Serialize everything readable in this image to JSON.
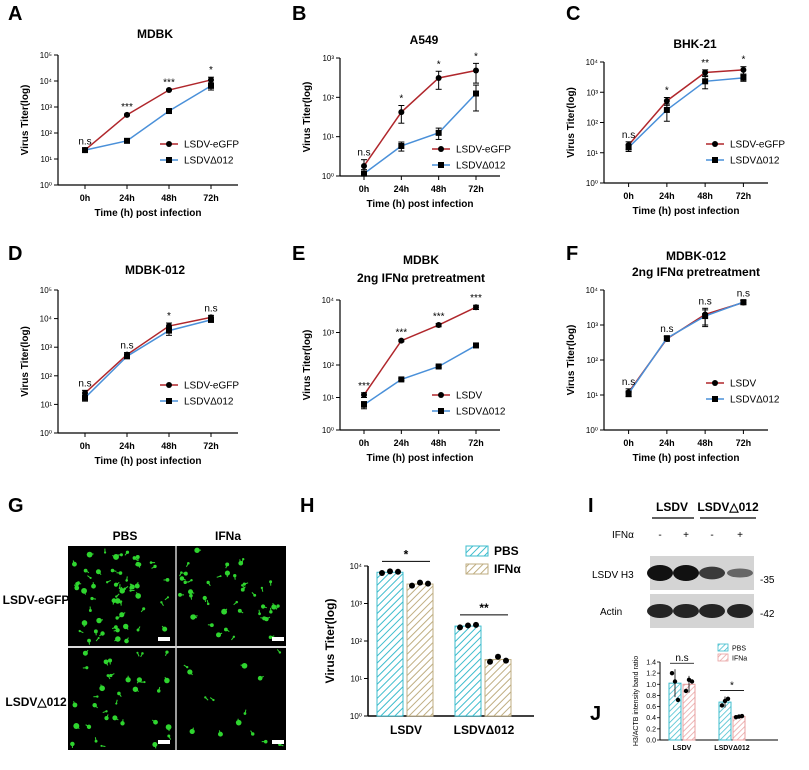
{
  "figure": {
    "colors": {
      "lsdv": "#b0272c",
      "mut": "#4a90d9",
      "pbs": "#3dbccd",
      "ifn": "#bfae82",
      "gfp": "#2fd52f"
    },
    "panel_a": {
      "label": "A",
      "title": "MDBK"
    },
    "panel_b": {
      "label": "B",
      "title": "A549"
    },
    "panel_c": {
      "label": "C",
      "title": "BHK-21"
    },
    "panel_d": {
      "label": "D",
      "title": "MDBK-012"
    },
    "panel_e": {
      "label": "E",
      "title_line1": "MDBK",
      "title_line2": "2ng IFNα pretreatment"
    },
    "panel_f": {
      "label": "F",
      "title_line1": "MDBK-012",
      "title_line2": "2ng IFNα pretreatment"
    },
    "panel_g": {
      "label": "G",
      "col_pbs": "PBS",
      "col_ifn": "IFNa",
      "row_1": "LSDV-eGFP",
      "row_2": "LSDV△012"
    },
    "panel_h": {
      "label": "H"
    },
    "panel_i": {
      "label": "I",
      "group_1": "LSDV",
      "group_2": "LSDV△012",
      "ifn_label": "IFNα",
      "ifn_states": [
        "-",
        "+",
        "-",
        "+"
      ],
      "row_1": "LSDV H3",
      "row_2": "Actin",
      "marker_1": "-35",
      "marker_2": "-42",
      "band_intensity_row_1": [
        1.0,
        1.0,
        0.72,
        0.42
      ],
      "band_intensity_row_2": [
        1.0,
        1.0,
        1.0,
        1.0
      ]
    },
    "panel_j": {
      "label": "J"
    }
  },
  "chart_data": [
    {
      "id": "A",
      "type": "line",
      "title": "MDBK",
      "xlabel": "Time (h) post infection",
      "ylabel": "Virus Titer(log)",
      "yscale": "log",
      "ylim": [
        1,
        100000
      ],
      "y_ticks": [
        "10⁰",
        "10¹",
        "10²",
        "10³",
        "10⁴",
        "10⁵"
      ],
      "categories": [
        "0h",
        "24h",
        "48h",
        "72h"
      ],
      "series": [
        {
          "name": "LSDV-eGFP",
          "values": [
            22,
            500,
            4500,
            11000
          ],
          "errors": [
            3,
            40,
            300,
            3000
          ]
        },
        {
          "name": "LSDVΔ012",
          "values": [
            22,
            50,
            700,
            6500
          ],
          "errors": [
            3,
            5,
            80,
            2000
          ]
        }
      ],
      "annotations": [
        "n.s",
        "***",
        "***",
        "*"
      ],
      "legend": "right"
    },
    {
      "id": "B",
      "type": "line",
      "title": "A549",
      "xlabel": "Time (h) post infection",
      "ylabel": "Virus Titer(log)",
      "yscale": "log",
      "ylim": [
        1,
        1000
      ],
      "y_ticks": [
        "10⁰",
        "10¹",
        "10²",
        "10³"
      ],
      "categories": [
        "0h",
        "24h",
        "48h",
        "72h"
      ],
      "series": [
        {
          "name": "LSDV-eGFP",
          "values": [
            1.8,
            42,
            310,
            480
          ],
          "errors": [
            0.8,
            20,
            150,
            250
          ]
        },
        {
          "name": "LSDVΔ012",
          "values": [
            1.15,
            5.8,
            12.5,
            125
          ],
          "errors": [
            0.3,
            1.5,
            4,
            80
          ]
        }
      ],
      "annotations": [
        "n.s",
        "*",
        "*",
        "*"
      ],
      "legend": "right"
    },
    {
      "id": "C",
      "type": "line",
      "title": "BHK-21",
      "xlabel": "Time (h) post infection",
      "ylabel": "Virus Titer(log)",
      "yscale": "log",
      "ylim": [
        1,
        10000
      ],
      "y_ticks": [
        "10⁰",
        "10¹",
        "10²",
        "10³",
        "10⁴"
      ],
      "categories": [
        "0h",
        "24h",
        "48h",
        "72h"
      ],
      "series": [
        {
          "name": "LSDV-eGFP",
          "values": [
            18,
            520,
            4500,
            5500
          ],
          "errors": [
            5,
            150,
            1000,
            1500
          ]
        },
        {
          "name": "LSDVΔ012",
          "values": [
            15,
            260,
            2300,
            3000
          ],
          "errors": [
            4,
            150,
            1000,
            700
          ]
        }
      ],
      "annotations": [
        "n.s",
        "*",
        "**",
        "*"
      ],
      "legend": "right"
    },
    {
      "id": "D",
      "type": "line",
      "title": "MDBK-012",
      "xlabel": "Time (h) post infection",
      "ylabel": "Virus Titer(log)",
      "yscale": "log",
      "ylim": [
        1,
        100000
      ],
      "y_ticks": [
        "10⁰",
        "10¹",
        "10²",
        "10³",
        "10⁴",
        "10⁵"
      ],
      "categories": [
        "0h",
        "24h",
        "48h",
        "72h"
      ],
      "series": [
        {
          "name": "LSDV-eGFP",
          "values": [
            25,
            550,
            5500,
            11000
          ],
          "errors": [
            6,
            100,
            1500,
            2000
          ]
        },
        {
          "name": "LSDVΔ012",
          "values": [
            17,
            480,
            3800,
            9000
          ],
          "errors": [
            4,
            80,
            1200,
            1500
          ]
        }
      ],
      "annotations": [
        "n.s",
        "n.s",
        "*",
        "n.s"
      ],
      "legend": "right"
    },
    {
      "id": "E",
      "type": "line",
      "title": "MDBK 2ng IFNα pretreatment",
      "xlabel": "Time (h) post infection",
      "ylabel": "Virus Titer(log)",
      "yscale": "log",
      "ylim": [
        1,
        10000
      ],
      "y_ticks": [
        "10⁰",
        "10¹",
        "10²",
        "10³",
        "10⁴"
      ],
      "categories": [
        "0h",
        "24h",
        "48h",
        "72h"
      ],
      "series": [
        {
          "name": "LSDV",
          "values": [
            12,
            560,
            1700,
            6000
          ],
          "errors": [
            2,
            40,
            200,
            900
          ]
        },
        {
          "name": "LSDVΔ012",
          "values": [
            6,
            36,
            90,
            400
          ],
          "errors": [
            1.5,
            3,
            8,
            30
          ]
        }
      ],
      "annotations": [
        "***",
        "***",
        "***",
        "***"
      ],
      "legend": "right"
    },
    {
      "id": "F",
      "type": "line",
      "title": "MDBK-012 2ng IFNα pretreatment",
      "xlabel": "Time (h) post infection",
      "ylabel": "Virus Titer(log)",
      "yscale": "log",
      "ylim": [
        1,
        10000
      ],
      "y_ticks": [
        "10⁰",
        "10¹",
        "10²",
        "10³",
        "10⁴"
      ],
      "categories": [
        "0h",
        "24h",
        "48h",
        "72h"
      ],
      "series": [
        {
          "name": "LSDV",
          "values": [
            12,
            400,
            2000,
            4400
          ],
          "errors": [
            3,
            60,
            1000,
            600
          ]
        },
        {
          "name": "LSDVΔ012",
          "values": [
            11,
            420,
            1800,
            4500
          ],
          "errors": [
            2,
            60,
            900,
            500
          ]
        }
      ],
      "annotations": [
        "n.s",
        "n.s",
        "n.s",
        "n.s"
      ],
      "legend": "right"
    },
    {
      "id": "H",
      "type": "bar",
      "ylabel": "Virus Titer(log)",
      "yscale": "log",
      "ylim": [
        1,
        10000
      ],
      "y_ticks": [
        "10⁰",
        "10¹",
        "10²",
        "10³",
        "10⁴"
      ],
      "categories": [
        "LSDV",
        "LSDVΔ012"
      ],
      "series": [
        {
          "name": "PBS",
          "values": [
            6800,
            250
          ],
          "points": [
            [
              6500,
              7200,
              7000
            ],
            [
              230,
              260,
              270
            ]
          ]
        },
        {
          "name": "IFNα",
          "values": [
            3300,
            32
          ],
          "points": [
            [
              3000,
              3600,
              3400
            ],
            [
              28,
              38,
              30
            ]
          ]
        }
      ],
      "annotations": [
        "*",
        "**"
      ],
      "legend": "top-right"
    },
    {
      "id": "J",
      "type": "bar",
      "ylabel": "H3/ACTB intensity band ratio",
      "ylim": [
        0,
        1.4
      ],
      "y_ticks": [
        "0.0",
        "0.2",
        "0.4",
        "0.6",
        "0.8",
        "1.0",
        "1.2",
        "1.4"
      ],
      "categories": [
        "LSDV",
        "LSDVΔ012"
      ],
      "series": [
        {
          "name": "PBS",
          "values": [
            1.02,
            0.68
          ],
          "errors": [
            0.25,
            0.1
          ],
          "points": [
            [
              1.2,
              1.05,
              0.72
            ],
            [
              0.62,
              0.7,
              0.74
            ]
          ]
        },
        {
          "name": "IFNa",
          "values": [
            1.0,
            0.42
          ],
          "errors": [
            0.15,
            0.02
          ],
          "points": [
            [
              0.88,
              1.08,
              1.05
            ],
            [
              0.41,
              0.42,
              0.43
            ]
          ]
        }
      ],
      "annotations": [
        "n.s",
        "*"
      ],
      "legend": "top-right"
    }
  ]
}
